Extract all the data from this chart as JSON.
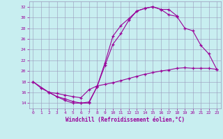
{
  "xlabel": "Windchill (Refroidissement éolien,°C)",
  "background_color": "#c8eef0",
  "line_color": "#990099",
  "xlim": [
    -0.5,
    23.5
  ],
  "ylim": [
    13,
    33
  ],
  "yticks": [
    14,
    16,
    18,
    20,
    22,
    24,
    26,
    28,
    30,
    32
  ],
  "xticks": [
    0,
    1,
    2,
    3,
    4,
    5,
    6,
    7,
    8,
    9,
    10,
    11,
    12,
    13,
    14,
    15,
    16,
    17,
    18,
    19,
    20,
    21,
    22,
    23
  ],
  "series1_x": [
    0,
    1,
    2,
    3,
    4,
    5,
    6,
    7,
    8,
    9,
    10,
    11,
    12,
    13,
    14,
    15,
    16,
    17,
    18
  ],
  "series1_y": [
    18.0,
    16.8,
    16.0,
    15.2,
    14.5,
    14.0,
    14.0,
    14.0,
    17.0,
    21.5,
    26.5,
    28.5,
    29.8,
    31.2,
    31.7,
    32.0,
    31.5,
    31.5,
    30.3
  ],
  "series2_x": [
    2,
    3,
    4,
    5,
    6,
    7,
    8,
    9,
    10,
    11,
    12,
    13,
    14,
    15,
    16,
    17,
    18,
    19,
    20,
    21,
    22,
    23
  ],
  "series2_y": [
    16.0,
    15.2,
    14.8,
    14.3,
    14.0,
    14.2,
    17.0,
    21.0,
    25.0,
    27.0,
    29.5,
    31.2,
    31.7,
    32.0,
    31.5,
    30.5,
    30.2,
    28.0,
    27.5,
    24.8,
    23.2,
    20.3
  ],
  "series3_x": [
    0,
    2,
    3,
    4,
    5,
    6,
    7,
    8,
    9,
    10,
    11,
    12,
    13,
    14,
    15,
    16,
    17,
    18,
    19,
    20,
    21,
    22,
    23
  ],
  "series3_y": [
    18.0,
    16.0,
    15.8,
    15.5,
    15.2,
    15.0,
    16.5,
    17.2,
    17.5,
    17.8,
    18.2,
    18.6,
    19.0,
    19.4,
    19.7,
    20.0,
    20.2,
    20.5,
    20.6,
    20.5,
    20.5,
    20.5,
    20.3
  ]
}
